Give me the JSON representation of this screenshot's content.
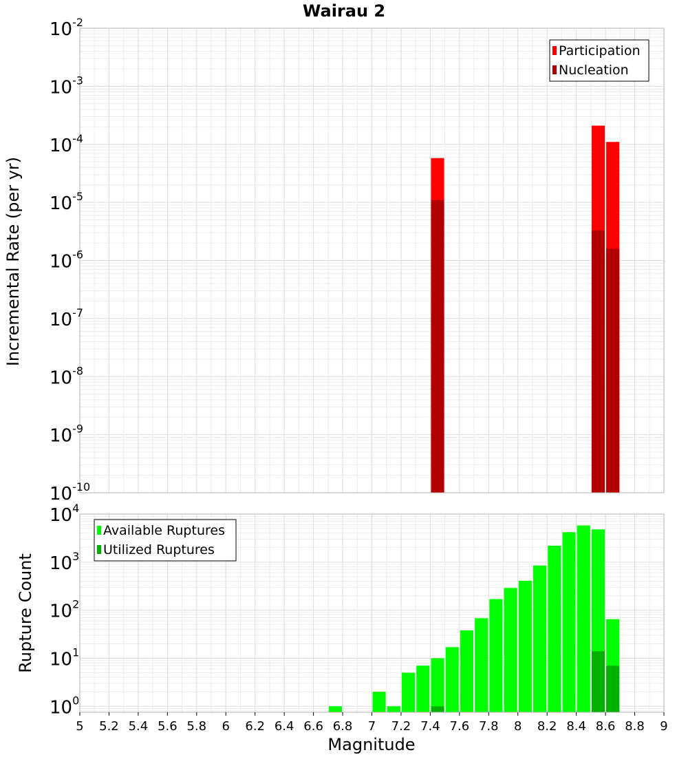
{
  "chart_data": [
    {
      "type": "bar",
      "title": "Wairau 2",
      "xlabel": "",
      "ylabel": "Incremental Rate (per yr)",
      "yscale": "log",
      "ylim": [
        1e-10,
        0.01
      ],
      "xlim": [
        5,
        9
      ],
      "y_ticks": [
        {
          "base": "10",
          "exp": "-10",
          "value": 1e-10
        },
        {
          "base": "10",
          "exp": "-9",
          "value": 1e-09
        },
        {
          "base": "10",
          "exp": "-8",
          "value": 1e-08
        },
        {
          "base": "10",
          "exp": "-7",
          "value": 1e-07
        },
        {
          "base": "10",
          "exp": "-6",
          "value": 1e-06
        },
        {
          "base": "10",
          "exp": "-5",
          "value": 1e-05
        },
        {
          "base": "10",
          "exp": "-4",
          "value": 0.0001
        },
        {
          "base": "10",
          "exp": "-3",
          "value": 0.001
        },
        {
          "base": "10",
          "exp": "-2",
          "value": 0.01
        }
      ],
      "legend_position": "top-right",
      "grid": true,
      "bar_width": 0.09,
      "series": [
        {
          "name": "Participation",
          "color": "#ff0000",
          "x": [
            7.45,
            8.55,
            8.65
          ],
          "values": [
            5.8e-05,
            0.00021,
            0.00011
          ]
        },
        {
          "name": "Nucleation",
          "color": "#b20000",
          "x": [
            7.45,
            8.55,
            8.65
          ],
          "values": [
            1.1e-05,
            3.3e-06,
            1.6e-06
          ]
        }
      ]
    },
    {
      "type": "bar",
      "title": "",
      "xlabel": "Magnitude",
      "ylabel": "Rupture Count",
      "yscale": "log",
      "ylim": [
        0.75,
        10000
      ],
      "xlim": [
        5,
        9
      ],
      "y_ticks": [
        {
          "base": "10",
          "exp": "0",
          "value": 1
        },
        {
          "base": "10",
          "exp": "1",
          "value": 10
        },
        {
          "base": "10",
          "exp": "2",
          "value": 100
        },
        {
          "base": "10",
          "exp": "3",
          "value": 1000
        },
        {
          "base": "10",
          "exp": "4",
          "value": 10000
        }
      ],
      "x_ticks": [
        "5",
        "5.2",
        "5.4",
        "5.6",
        "5.8",
        "6",
        "6.2",
        "6.4",
        "6.6",
        "6.8",
        "7",
        "7.2",
        "7.4",
        "7.6",
        "7.8",
        "8",
        "8.2",
        "8.4",
        "8.6",
        "8.8",
        "9"
      ],
      "legend_position": "top-left",
      "grid": true,
      "bar_width": 0.09,
      "series": [
        {
          "name": "Available Ruptures",
          "color": "#00ff00",
          "x": [
            6.75,
            7.05,
            7.15,
            7.25,
            7.35,
            7.45,
            7.55,
            7.65,
            7.75,
            7.85,
            7.95,
            8.05,
            8.15,
            8.25,
            8.35,
            8.45,
            8.55,
            8.65
          ],
          "values": [
            1,
            2,
            1,
            5,
            7,
            10,
            17,
            38,
            68,
            170,
            290,
            410,
            850,
            2200,
            4200,
            5800,
            4800,
            65
          ]
        },
        {
          "name": "Utilized Ruptures",
          "color": "#00b200",
          "x": [
            7.45,
            8.55,
            8.65
          ],
          "values": [
            1,
            14,
            7
          ]
        }
      ]
    }
  ]
}
